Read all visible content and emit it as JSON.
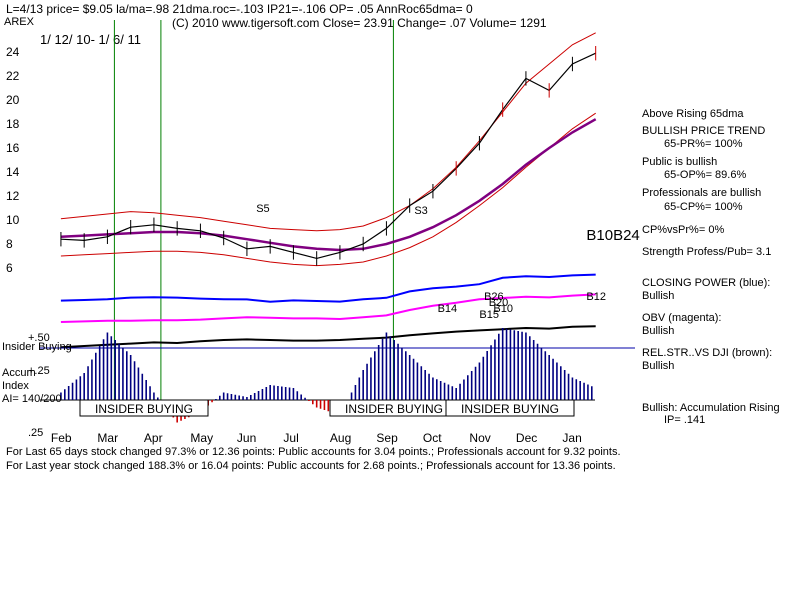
{
  "header": {
    "line1": "L=4/13  price= $9.05  la/ma=.98 21dma.roc=-.103 IP21=-.106 OP= .05 AnnRoc65dma= 0",
    "ticker": "AREX",
    "line2": "(C) 2010 www.tigersoft.com     Close=  23.91  Change= .07 Volume= 1291",
    "date_range": "1/ 12/ 10- 1/ 6/ 11"
  },
  "right_panel": {
    "above": "Above Rising 65dma",
    "bullish_trend": "BULLISH PRICE TREND",
    "pr": "65-PR%= 100%",
    "public_bullish": "Public is bullish",
    "op": "65-OP%= 89.6%",
    "prof_bullish": "Professionals are bullish",
    "cp": "65-CP%= 100%",
    "cpvspr": "CP%vsPr%=  0%",
    "strength": "Strength Profess/Pub= 3.1",
    "closing_power": "CLOSING POWER (blue):",
    "cp_val": "Bullish",
    "obv": "OBV (magenta):",
    "obv_val": "Bullish",
    "relstr": "REL.STR..VS DJI (brown):",
    "relstr_val": "Bullish",
    "accum": "Bullish: Accumulation Rising",
    "ip": "IP=  .141"
  },
  "footer": {
    "line1": "For Last 65 days stock changed  97.3% or  12.36 points:  Public accounts for  3.04 points.;  Professionals account for  9.32 points.",
    "line2": "For Last year stock changed  188.3% or  16.04 points:  Public accounts for  2.68 points.;  Professionals account for  13.36 points."
  },
  "colors": {
    "price": "#000000",
    "ma65": "#800080",
    "band": "#cc0000",
    "closing_power": "#0000ff",
    "obv": "#ff00ff",
    "relstr": "#000000",
    "accum": "#000080",
    "insider": "#008000"
  },
  "chart_data": {
    "type": "line",
    "x_label_months": [
      "Feb",
      "Mar",
      "Apr",
      "May",
      "Jun",
      "Jul",
      "Aug",
      "Sep",
      "Oct",
      "Nov",
      "Dec",
      "Jan"
    ],
    "y_ticks": [
      24,
      22,
      20,
      18,
      16,
      14,
      12,
      10,
      8,
      6
    ],
    "ylim": [
      5,
      25
    ],
    "price_months": [
      0,
      0.5,
      1,
      1.5,
      2,
      2.5,
      3,
      3.5,
      4,
      4.5,
      5,
      5.5,
      6,
      6.5,
      7,
      7.5,
      8,
      8.5,
      9,
      9.5,
      10,
      10.5,
      11,
      11.5
    ],
    "price": [
      8.4,
      8.3,
      8.6,
      9.4,
      9.6,
      9.3,
      9.1,
      8.5,
      7.6,
      7.8,
      7.3,
      6.8,
      7.3,
      8.0,
      9.3,
      11.2,
      12.4,
      14.3,
      16.4,
      19.2,
      21.8,
      20.8,
      23.0,
      23.9
    ],
    "ma65": [
      8.6,
      8.7,
      8.8,
      8.9,
      9.0,
      9.0,
      8.9,
      8.7,
      8.4,
      8.1,
      7.8,
      7.6,
      7.5,
      7.6,
      8.0,
      8.6,
      9.4,
      10.4,
      11.6,
      13.0,
      14.6,
      16.0,
      17.3,
      18.4
    ],
    "band_upper": [
      10.1,
      10.3,
      10.5,
      10.7,
      10.6,
      10.4,
      10.2,
      9.9,
      9.6,
      9.3,
      9.2,
      9.1,
      9.2,
      9.5,
      10.2,
      11.2,
      12.6,
      14.4,
      16.6,
      19.0,
      21.4,
      23.0,
      24.6,
      25.6
    ],
    "band_lower": [
      7.0,
      7.1,
      7.2,
      7.3,
      7.4,
      7.4,
      7.3,
      7.1,
      6.8,
      6.5,
      6.3,
      6.2,
      6.3,
      6.5,
      7.0,
      7.7,
      8.6,
      9.8,
      11.2,
      12.7,
      14.4,
      16.0,
      17.6,
      18.9
    ],
    "closing_power": [
      0.55,
      0.62,
      0.72,
      0.92,
      0.97,
      0.93,
      0.8,
      0.72,
      0.7,
      0.4,
      0.58,
      0.5,
      0.42,
      0.72,
      0.9,
      1.7,
      2.1,
      2.3,
      2.6,
      3.4,
      3.6,
      3.5,
      3.7,
      3.8
    ],
    "obv": [
      0.0,
      0.05,
      0.1,
      0.1,
      0.15,
      0.15,
      0.2,
      0.3,
      0.4,
      0.35,
      0.3,
      0.3,
      0.25,
      0.4,
      0.55,
      1.0,
      1.35,
      1.6,
      1.9,
      2.0,
      2.1,
      2.05,
      2.2,
      2.3
    ],
    "relstr": [
      -0.6,
      -0.5,
      -0.4,
      -0.3,
      -0.2,
      -0.25,
      -0.1,
      0.0,
      0.05,
      0.0,
      -0.05,
      -0.05,
      0.0,
      0.1,
      0.2,
      0.4,
      0.55,
      0.7,
      0.8,
      0.9,
      1.0,
      0.95,
      1.1,
      1.15
    ],
    "accum_months": [
      0,
      0.5,
      1,
      1.5,
      2,
      2.5,
      3,
      3.5,
      4,
      4.5,
      5,
      5.5,
      6,
      6.5,
      7,
      7.5,
      8,
      8.5,
      9,
      9.5,
      10,
      10.5,
      11,
      11.5
    ],
    "accum": [
      0.05,
      0.18,
      0.45,
      0.3,
      0.05,
      -0.15,
      -0.08,
      0.05,
      0.02,
      0.1,
      0.08,
      -0.05,
      -0.1,
      0.2,
      0.45,
      0.3,
      0.15,
      0.08,
      0.25,
      0.48,
      0.45,
      0.3,
      0.15,
      0.08
    ],
    "accum_ticks": [
      "+.50",
      "+.25",
      ".25"
    ],
    "ai_label": "AI= 140/200",
    "accum_label": "Accum",
    "index_label": "Index",
    "insider_label": "Insider Buying",
    "insider_banners": [
      "INSIDER BUYING",
      "INSIDER BUYING",
      "INSIDER BUYING"
    ],
    "insider_months": [
      1.15,
      2.15,
      7.15
    ],
    "signals": [
      {
        "label": "S5",
        "month": 4.2
      },
      {
        "label": "S3",
        "month": 7.6
      },
      {
        "label": "B14",
        "month": 8.1
      },
      {
        "label": "B15",
        "month": 9.0
      },
      {
        "label": "B26",
        "month": 9.1
      },
      {
        "label": "B20",
        "month": 9.2
      },
      {
        "label": "B10",
        "month": 9.3
      },
      {
        "label": "B10B24",
        "month": 11.3
      },
      {
        "label": "B12",
        "month": 11.3
      }
    ]
  }
}
